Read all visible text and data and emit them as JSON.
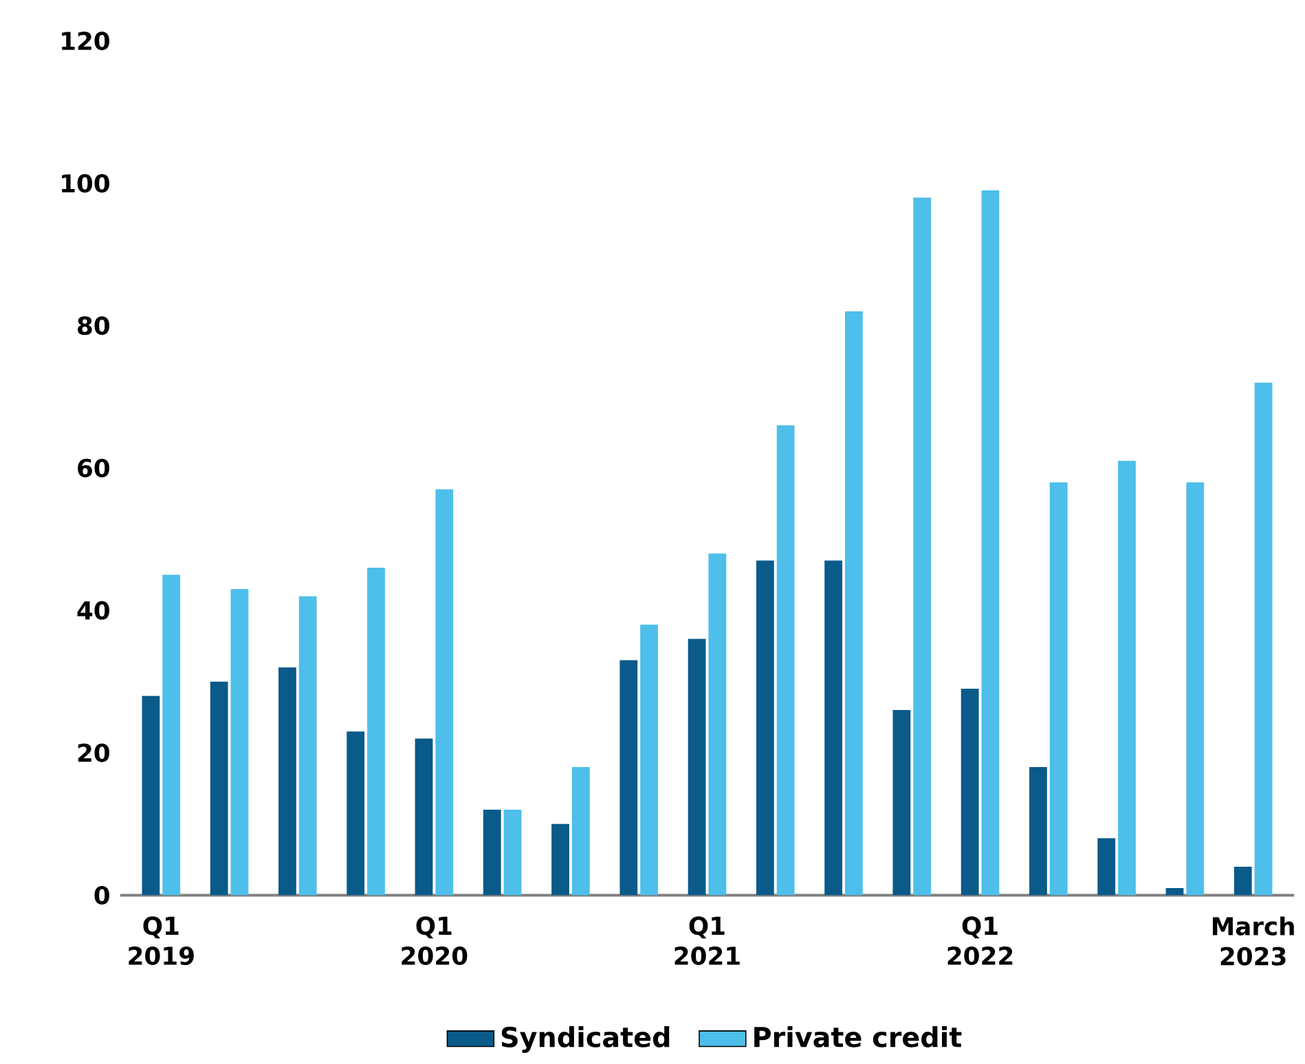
{
  "chart_data": {
    "type": "bar",
    "categories": [
      "Q1 2019",
      null,
      null,
      null,
      "Q1 2020",
      null,
      null,
      null,
      "Q1 2021",
      null,
      null,
      null,
      "Q1 2022",
      null,
      null,
      null,
      "March 2023"
    ],
    "series": [
      {
        "name": "Syndicated",
        "color": "#0a5a8a",
        "values": [
          28,
          30,
          32,
          23,
          22,
          12,
          10,
          33,
          36,
          47,
          47,
          26,
          29,
          18,
          8,
          1,
          4
        ]
      },
      {
        "name": "Private credit",
        "color": "#4dbfea",
        "values": [
          45,
          43,
          42,
          46,
          57,
          12,
          18,
          38,
          48,
          66,
          82,
          98,
          99,
          58,
          61,
          58,
          72
        ]
      }
    ],
    "ylim": [
      0,
      120
    ],
    "yticks": [
      0,
      20,
      40,
      60,
      80,
      100,
      120
    ],
    "grid": false,
    "legend": "bottom"
  }
}
